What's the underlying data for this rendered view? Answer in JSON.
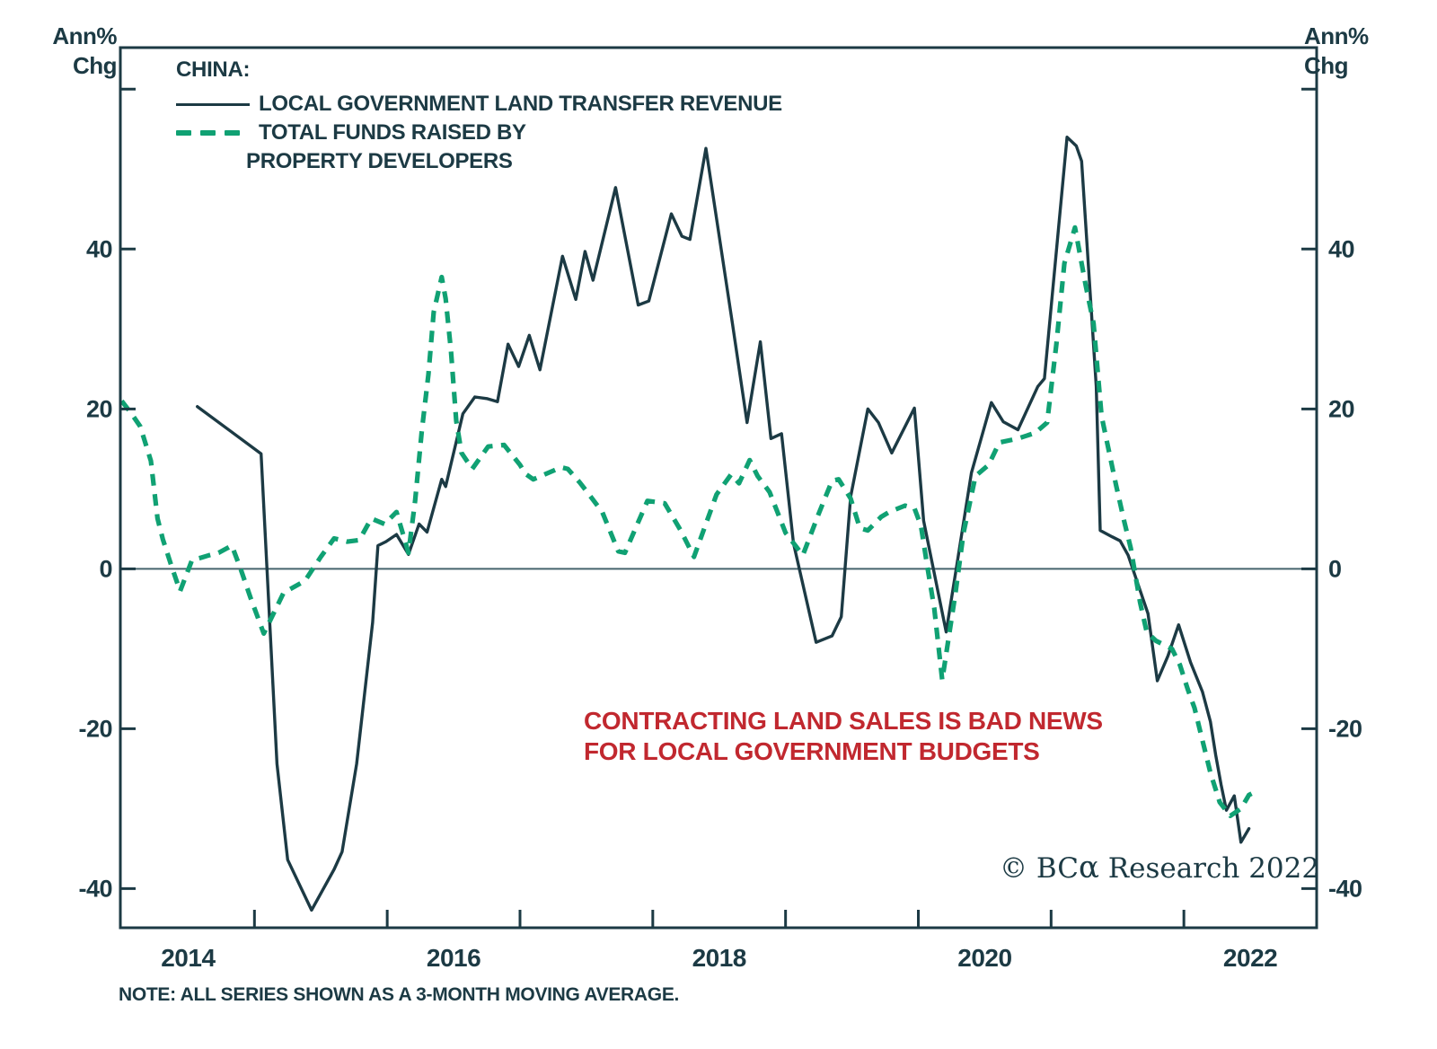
{
  "colors": {
    "ink": "#1c3a44",
    "green": "#10a173",
    "red": "#c1282f",
    "zero_line": "#46656e"
  },
  "y_unit": {
    "line1": "Ann%",
    "line2": "Chg"
  },
  "legend": {
    "title": "CHINA:",
    "series1_label": "LOCAL GOVERNMENT LAND TRANSFER REVENUE",
    "series2_label_line1": "TOTAL FUNDS RAISED BY",
    "series2_label_line2": "PROPERTY DEVELOPERS"
  },
  "annotation": {
    "line1": "CONTRACTING LAND SALES IS BAD NEWS",
    "line2": "FOR LOCAL GOVERNMENT BUDGETS"
  },
  "credit": {
    "copyright": "© ",
    "brand": "BC",
    "alpha": "α",
    "rest": " Research ",
    "year": "2022"
  },
  "note": "NOTE: ALL SERIES SHOWN AS A 3-MONTH MOVING AVERAGE.",
  "chart_data": {
    "type": "line",
    "title": "",
    "xlabel": "",
    "ylabel": "Ann% Chg",
    "xlim": [
      2013.99,
      2023.0
    ],
    "ylim": [
      -44.9,
      65.2
    ],
    "grid": false,
    "legend_position": "top-left",
    "x_axis": {
      "tick_years": [
        2015,
        2016,
        2017,
        2018,
        2019,
        2020,
        2021,
        2022
      ],
      "labels": [
        {
          "pos": 2014.5,
          "text": "2014"
        },
        {
          "pos": 2016.5,
          "text": "2016"
        },
        {
          "pos": 2018.5,
          "text": "2018"
        },
        {
          "pos": 2020.5,
          "text": "2020"
        },
        {
          "pos": 2022.5,
          "text": "2022"
        }
      ]
    },
    "y_axis": {
      "ticks": [
        60,
        40,
        20,
        0,
        -20,
        -40
      ],
      "labels": [
        {
          "pos": 40,
          "text": "40"
        },
        {
          "pos": 20,
          "text": "20"
        },
        {
          "pos": 0,
          "text": "0"
        },
        {
          "pos": -20,
          "text": "-20"
        },
        {
          "pos": -40,
          "text": "-40"
        }
      ],
      "zero_line": true,
      "mirrored_right": true
    },
    "series": [
      {
        "name": "LOCAL GOVERNMENT LAND TRANSFER REVENUE",
        "style": "solid",
        "color_key": "ink",
        "width": 3.4,
        "points": [
          [
            2014.57,
            20.3
          ],
          [
            2015.05,
            14.4
          ],
          [
            2015.17,
            -24.4
          ],
          [
            2015.25,
            -36.4
          ],
          [
            2015.43,
            -42.7
          ],
          [
            2015.6,
            -37.6
          ],
          [
            2015.66,
            -35.4
          ],
          [
            2015.77,
            -24.4
          ],
          [
            2015.89,
            -6.7
          ],
          [
            2015.93,
            2.9
          ],
          [
            2015.99,
            3.4
          ],
          [
            2016.07,
            4.3
          ],
          [
            2016.16,
            1.8
          ],
          [
            2016.24,
            5.6
          ],
          [
            2016.3,
            4.6
          ],
          [
            2016.41,
            11.2
          ],
          [
            2016.44,
            10.3
          ],
          [
            2016.57,
            19.4
          ],
          [
            2016.66,
            21.5
          ],
          [
            2016.75,
            21.3
          ],
          [
            2016.83,
            20.9
          ],
          [
            2016.91,
            28.1
          ],
          [
            2016.99,
            25.3
          ],
          [
            2017.07,
            29.2
          ],
          [
            2017.15,
            24.9
          ],
          [
            2017.32,
            39.1
          ],
          [
            2017.42,
            33.7
          ],
          [
            2017.49,
            39.7
          ],
          [
            2017.55,
            36.1
          ],
          [
            2017.72,
            47.7
          ],
          [
            2017.89,
            33.0
          ],
          [
            2017.97,
            33.5
          ],
          [
            2018.14,
            44.4
          ],
          [
            2018.22,
            41.6
          ],
          [
            2018.28,
            41.2
          ],
          [
            2018.4,
            52.6
          ],
          [
            2018.6,
            30.7
          ],
          [
            2018.71,
            18.3
          ],
          [
            2018.81,
            28.4
          ],
          [
            2018.89,
            16.3
          ],
          [
            2018.97,
            16.9
          ],
          [
            2019.06,
            3.2
          ],
          [
            2019.23,
            -9.2
          ],
          [
            2019.35,
            -8.4
          ],
          [
            2019.42,
            -6.0
          ],
          [
            2019.49,
            9.0
          ],
          [
            2019.62,
            20.0
          ],
          [
            2019.7,
            18.3
          ],
          [
            2019.8,
            14.5
          ],
          [
            2019.97,
            20.1
          ],
          [
            2020.04,
            6.0
          ],
          [
            2020.21,
            -7.9
          ],
          [
            2020.29,
            0.5
          ],
          [
            2020.4,
            12.0
          ],
          [
            2020.55,
            20.8
          ],
          [
            2020.64,
            18.4
          ],
          [
            2020.75,
            17.4
          ],
          [
            2020.9,
            22.8
          ],
          [
            2020.95,
            23.8
          ],
          [
            2021.12,
            54.0
          ],
          [
            2021.19,
            52.9
          ],
          [
            2021.23,
            51.0
          ],
          [
            2021.34,
            22.8
          ],
          [
            2021.37,
            4.8
          ],
          [
            2021.46,
            4.0
          ],
          [
            2021.52,
            3.5
          ],
          [
            2021.58,
            1.7
          ],
          [
            2021.73,
            -5.6
          ],
          [
            2021.8,
            -14.0
          ],
          [
            2021.88,
            -10.9
          ],
          [
            2021.96,
            -7.0
          ],
          [
            2022.05,
            -11.7
          ],
          [
            2022.14,
            -15.4
          ],
          [
            2022.2,
            -19.1
          ],
          [
            2022.24,
            -23.3
          ],
          [
            2022.28,
            -27.0
          ],
          [
            2022.32,
            -30.2
          ],
          [
            2022.38,
            -28.4
          ],
          [
            2022.43,
            -34.2
          ],
          [
            2022.49,
            -32.5
          ]
        ]
      },
      {
        "name": "TOTAL FUNDS RAISED BY PROPERTY DEVELOPERS",
        "style": "dashed",
        "color_key": "green",
        "width": 5.2,
        "dash": [
          13,
          9.5
        ],
        "points": [
          [
            2014.0,
            21.0
          ],
          [
            2014.07,
            19.5
          ],
          [
            2014.14,
            17.8
          ],
          [
            2014.22,
            13.5
          ],
          [
            2014.27,
            6.3
          ],
          [
            2014.31,
            3.7
          ],
          [
            2014.37,
            0.6
          ],
          [
            2014.44,
            -2.8
          ],
          [
            2014.53,
            1.1
          ],
          [
            2014.6,
            1.4
          ],
          [
            2014.66,
            1.7
          ],
          [
            2014.73,
            2.0
          ],
          [
            2014.83,
            2.9
          ],
          [
            2014.9,
            -0.2
          ],
          [
            2014.97,
            -3.6
          ],
          [
            2015.07,
            -8.1
          ],
          [
            2015.22,
            -3.0
          ],
          [
            2015.38,
            -1.5
          ],
          [
            2015.5,
            1.5
          ],
          [
            2015.6,
            3.8
          ],
          [
            2015.7,
            3.4
          ],
          [
            2015.79,
            3.6
          ],
          [
            2015.88,
            6.3
          ],
          [
            2015.98,
            5.6
          ],
          [
            2016.07,
            7.1
          ],
          [
            2016.16,
            2.0
          ],
          [
            2016.21,
            8.5
          ],
          [
            2016.26,
            17.2
          ],
          [
            2016.31,
            24.3
          ],
          [
            2016.35,
            32.1
          ],
          [
            2016.41,
            36.5
          ],
          [
            2016.44,
            33.8
          ],
          [
            2016.48,
            27.3
          ],
          [
            2016.52,
            18.5
          ],
          [
            2016.56,
            14.5
          ],
          [
            2016.64,
            12.5
          ],
          [
            2016.76,
            15.3
          ],
          [
            2016.88,
            15.5
          ],
          [
            2017.0,
            13.0
          ],
          [
            2017.04,
            11.9
          ],
          [
            2017.1,
            11.2
          ],
          [
            2017.31,
            12.7
          ],
          [
            2017.36,
            12.5
          ],
          [
            2017.45,
            10.8
          ],
          [
            2017.52,
            9.3
          ],
          [
            2017.62,
            7.1
          ],
          [
            2017.74,
            2.2
          ],
          [
            2017.79,
            2.0
          ],
          [
            2017.96,
            8.5
          ],
          [
            2018.09,
            8.2
          ],
          [
            2018.21,
            4.8
          ],
          [
            2018.31,
            1.5
          ],
          [
            2018.48,
            9.3
          ],
          [
            2018.59,
            11.8
          ],
          [
            2018.65,
            10.7
          ],
          [
            2018.73,
            13.6
          ],
          [
            2018.79,
            11.6
          ],
          [
            2018.88,
            9.6
          ],
          [
            2019.0,
            4.5
          ],
          [
            2019.13,
            1.7
          ],
          [
            2019.25,
            6.9
          ],
          [
            2019.35,
            11.0
          ],
          [
            2019.4,
            11.2
          ],
          [
            2019.49,
            8.8
          ],
          [
            2019.56,
            5.1
          ],
          [
            2019.62,
            4.8
          ],
          [
            2019.72,
            6.5
          ],
          [
            2019.78,
            7.1
          ],
          [
            2019.9,
            7.9
          ],
          [
            2019.97,
            7.6
          ],
          [
            2020.02,
            5.4
          ],
          [
            2020.07,
            0.1
          ],
          [
            2020.12,
            -4.9
          ],
          [
            2020.18,
            -13.9
          ],
          [
            2020.28,
            -3.0
          ],
          [
            2020.34,
            4.5
          ],
          [
            2020.43,
            11.6
          ],
          [
            2020.53,
            13.0
          ],
          [
            2020.61,
            15.8
          ],
          [
            2020.75,
            16.3
          ],
          [
            2020.88,
            17.0
          ],
          [
            2020.97,
            18.3
          ],
          [
            2021.04,
            28.1
          ],
          [
            2021.1,
            38.2
          ],
          [
            2021.18,
            42.7
          ],
          [
            2021.26,
            35.5
          ],
          [
            2021.32,
            30.7
          ],
          [
            2021.38,
            19.1
          ],
          [
            2021.49,
            10.4
          ],
          [
            2021.55,
            6.0
          ],
          [
            2021.6,
            2.6
          ],
          [
            2021.67,
            -4.2
          ],
          [
            2021.72,
            -7.9
          ],
          [
            2021.79,
            -9.0
          ],
          [
            2021.91,
            -10.0
          ],
          [
            2021.97,
            -12.0
          ],
          [
            2022.03,
            -15.1
          ],
          [
            2022.08,
            -17.4
          ],
          [
            2022.13,
            -20.8
          ],
          [
            2022.2,
            -25.5
          ],
          [
            2022.27,
            -29.2
          ],
          [
            2022.35,
            -30.9
          ],
          [
            2022.43,
            -30.0
          ],
          [
            2022.49,
            -28.3
          ],
          [
            2022.55,
            -27.8
          ]
        ]
      }
    ]
  }
}
